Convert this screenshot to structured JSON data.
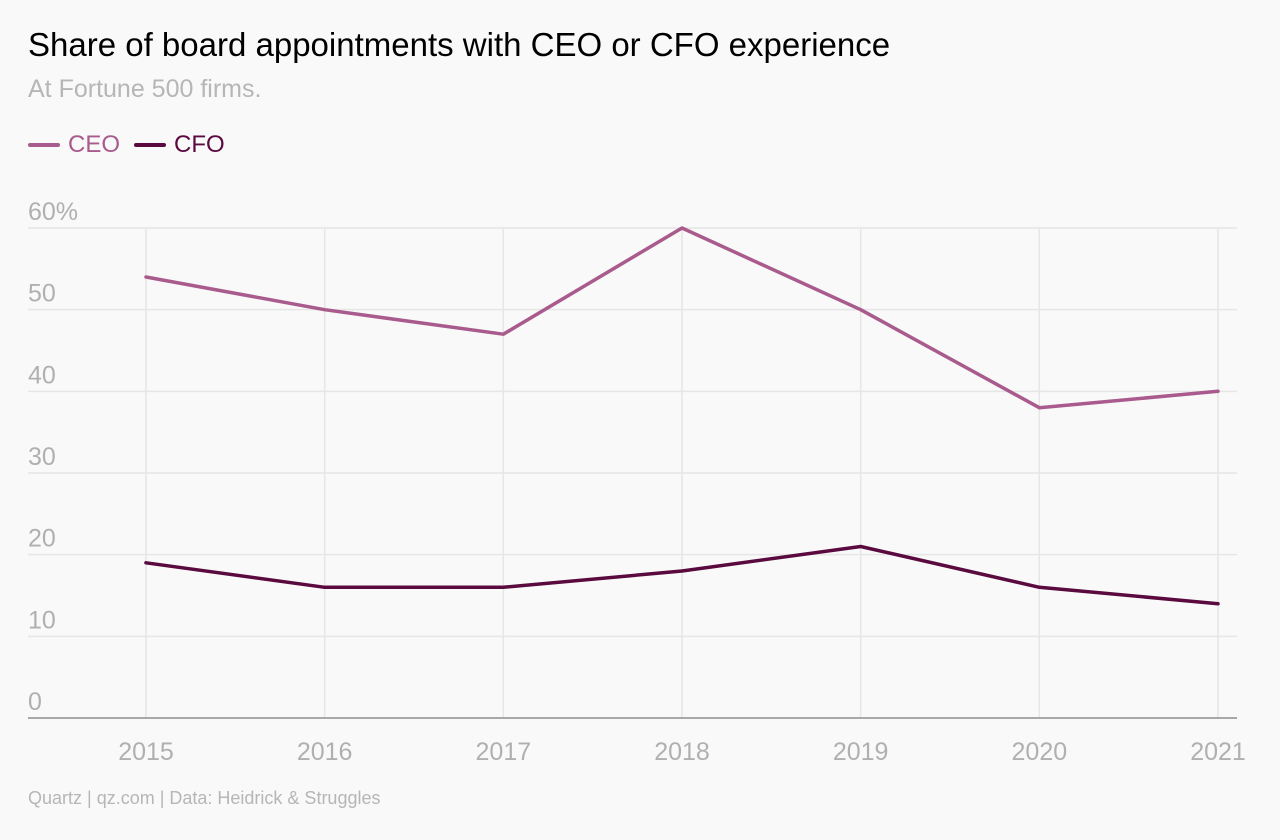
{
  "header": {
    "title": "Share of board appointments with CEO or CFO experience",
    "subtitle": "At Fortune 500 firms."
  },
  "footer": {
    "source": "Quartz | qz.com | Data: Heidrick & Struggles"
  },
  "colors": {
    "ceo": "#a85b8c",
    "cfo": "#5a0a3e",
    "gridline": "#e6e6e6",
    "axis": "#a8a8a8",
    "tick_label": "#b0b0b0"
  },
  "chart_data": {
    "type": "line",
    "title": "Share of board appointments with CEO or CFO experience",
    "subtitle": "At Fortune 500 firms.",
    "xlabel": "",
    "ylabel": "",
    "x": [
      2015,
      2016,
      2017,
      2018,
      2019,
      2020,
      2021
    ],
    "ylim": [
      0,
      60
    ],
    "yticks": [
      0,
      10,
      20,
      30,
      40,
      50,
      60
    ],
    "ytick_labels": [
      "0",
      "10",
      "20",
      "30",
      "40",
      "50",
      "60%"
    ],
    "xtick_labels": [
      "2015",
      "2016",
      "2017",
      "2018",
      "2019",
      "2020",
      "2021"
    ],
    "grid": true,
    "legend_position": "top-left",
    "series": [
      {
        "name": "CEO",
        "values": [
          54,
          50,
          47,
          60,
          50,
          38,
          40
        ]
      },
      {
        "name": "CFO",
        "values": [
          19,
          16,
          16,
          18,
          21,
          16,
          14
        ]
      }
    ]
  }
}
